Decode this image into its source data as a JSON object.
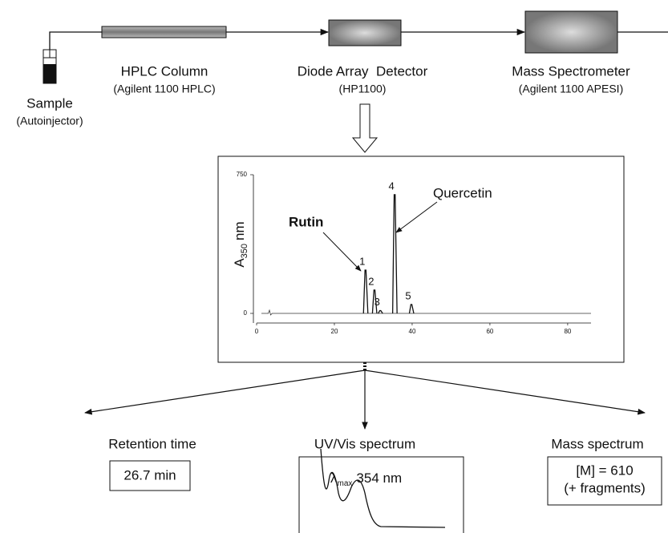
{
  "flow": {
    "sample": {
      "title": "Sample",
      "subtitle": "(Autoinjector)"
    },
    "column": {
      "title": "HPLC Column",
      "subtitle": "(Agilent 1100 HPLC)"
    },
    "detector": {
      "title": "Diode Array  Detector",
      "subtitle": "(HP1100)"
    },
    "ms": {
      "title": "Mass Spectrometer",
      "subtitle": "(Agilent 1100 APESI)"
    }
  },
  "chromatogram": {
    "y_label": {
      "main": "A",
      "sub": "350",
      "unit": "nm"
    },
    "xlim": [
      0,
      86
    ],
    "xticks": [
      0,
      20,
      40,
      60,
      80
    ],
    "ylim": [
      0,
      750
    ],
    "yticks": [
      0,
      750
    ],
    "peaks": [
      {
        "label": "1",
        "x": 28.0,
        "height": 234
      },
      {
        "label": "2",
        "x": 30.3,
        "height": 126
      },
      {
        "label": "3",
        "x": 31.8,
        "height": 15
      },
      {
        "label": "4",
        "x": 35.5,
        "height": 642
      },
      {
        "label": "5",
        "x": 39.8,
        "height": 48
      }
    ],
    "annotations": {
      "rutin": "Rutin",
      "quercetin": "Quercetin"
    }
  },
  "outputs": {
    "retention": {
      "title": "Retention time",
      "value": "26.7 min"
    },
    "uv": {
      "title": "UV/Vis spectrum",
      "lambda": "λ",
      "sub": "max",
      "value": "354 nm"
    },
    "mass": {
      "title": "Mass spectrum",
      "line1": "[M] = 610",
      "line2": "(+ fragments)"
    }
  }
}
